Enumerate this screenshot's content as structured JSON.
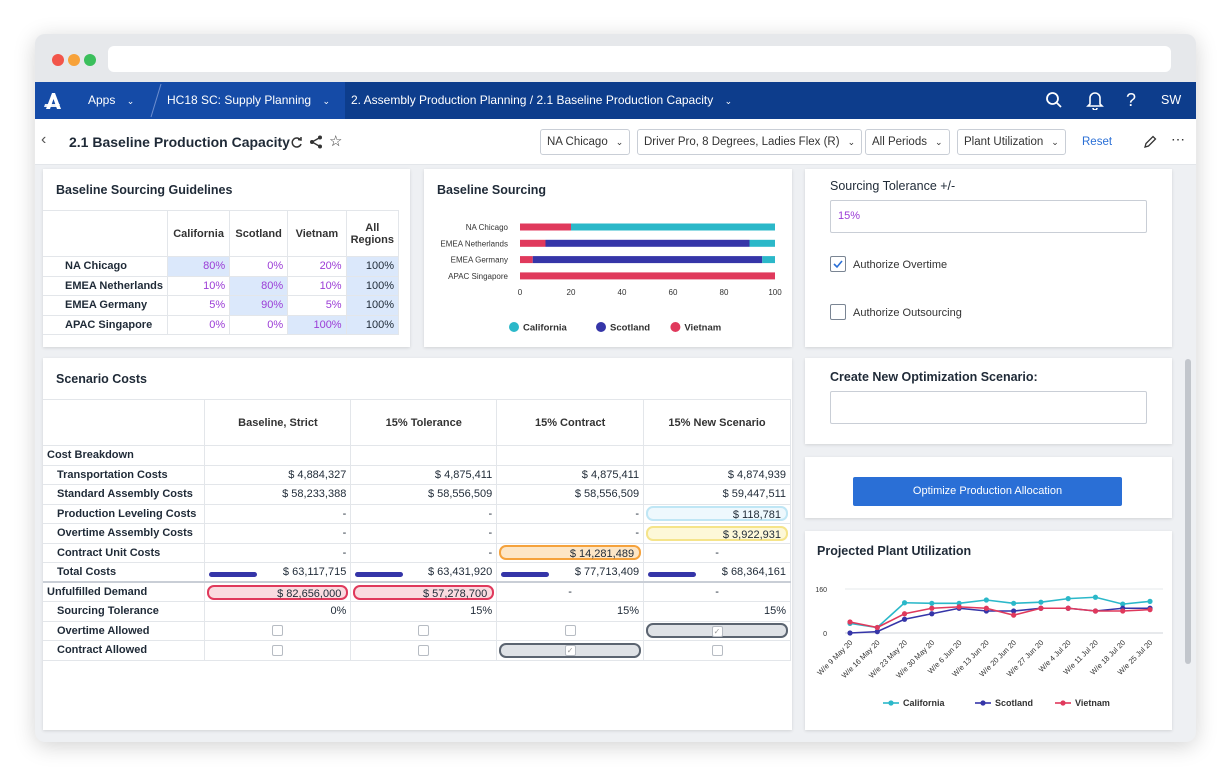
{
  "nav": {
    "apps": "Apps",
    "model": "HC18 SC: Supply Planning",
    "breadcrumb": "2. Assembly Production Planning / 2.1 Baseline Production Capacity",
    "user_initials": "SW"
  },
  "page": {
    "title": "2.1 Baseline Production Capacity",
    "filters": [
      "NA Chicago",
      "Driver Pro, 8 Degrees, Ladies Flex (R)",
      "All Periods",
      "Plant Utilization"
    ],
    "reset_label": "Reset"
  },
  "guidelines": {
    "title": "Baseline Sourcing Guidelines",
    "columns": [
      "California",
      "Scotland",
      "Vietnam",
      "All Regions"
    ],
    "rows": [
      {
        "label": "NA Chicago",
        "values": [
          "80%",
          "0%",
          "20%",
          "100%"
        ]
      },
      {
        "label": "EMEA Netherlands",
        "values": [
          "10%",
          "80%",
          "10%",
          "100%"
        ]
      },
      {
        "label": "EMEA Germany",
        "values": [
          "5%",
          "90%",
          "5%",
          "100%"
        ]
      },
      {
        "label": "APAC Singapore",
        "values": [
          "0%",
          "0%",
          "100%",
          "100%"
        ]
      }
    ]
  },
  "sourcing_chart": {
    "title": "Baseline Sourcing"
  },
  "tolerance": {
    "label": "Sourcing Tolerance +/-",
    "value": "15%",
    "overtime_label": "Authorize Overtime",
    "overtime_checked": true,
    "outsourcing_label": "Authorize Outsourcing",
    "outsourcing_checked": false
  },
  "new_scenario": {
    "label": "Create New Optimization Scenario:",
    "value": ""
  },
  "optimize": {
    "label": "Optimize Production Allocation"
  },
  "scenario_costs": {
    "title": "Scenario Costs",
    "columns": [
      "Baseline, Strict",
      "15% Tolerance",
      "15% Contract",
      "15% New Scenario"
    ],
    "section_label": "Cost Breakdown",
    "rows": [
      {
        "label": "Transportation Costs",
        "values": [
          "$ 4,884,327",
          "$ 4,875,411",
          "$ 4,875,411",
          "$ 4,874,939"
        ]
      },
      {
        "label": "Standard Assembly Costs",
        "values": [
          "$ 58,233,388",
          "$ 58,556,509",
          "$ 58,556,509",
          "$ 59,447,511"
        ]
      },
      {
        "label": "Production Leveling Costs",
        "values": [
          "-",
          "-",
          "-",
          "$ 118,781"
        ]
      },
      {
        "label": "Overtime Assembly Costs",
        "values": [
          "-",
          "-",
          "-",
          "$ 3,922,931"
        ]
      },
      {
        "label": "Contract Unit Costs",
        "values": [
          "-",
          "-",
          "$ 14,281,489",
          "-"
        ]
      },
      {
        "label": "Total Costs",
        "values": [
          "$ 63,117,715",
          "$ 63,431,920",
          "$ 77,713,409",
          "$ 68,364,161"
        ]
      },
      {
        "label": "Unfulfilled Demand",
        "values": [
          "$ 82,656,000",
          "$ 57,278,700",
          "-",
          "-"
        ]
      },
      {
        "label": "Sourcing Tolerance",
        "values": [
          "0%",
          "15%",
          "15%",
          "15%"
        ]
      }
    ],
    "overtime_label": "Overtime Allowed",
    "contract_label": "Contract Allowed"
  },
  "projection": {
    "title": "Projected Plant Utilization"
  },
  "colors": {
    "california": "#2bb8c9",
    "scotland": "#3535a8",
    "vietnam": "#e0395c",
    "nav": "#0d3d8c",
    "button": "#2a6fd6"
  },
  "chart_data": [
    {
      "type": "bar",
      "orientation": "horizontal",
      "stacked": true,
      "title": "Baseline Sourcing",
      "categories": [
        "NA Chicago",
        "EMEA Netherlands",
        "EMEA Germany",
        "APAC Singapore"
      ],
      "series": [
        {
          "name": "Vietnam",
          "values": [
            20,
            10,
            5,
            100
          ]
        },
        {
          "name": "Scotland",
          "values": [
            0,
            80,
            90,
            0
          ]
        },
        {
          "name": "California",
          "values": [
            80,
            10,
            5,
            0
          ]
        }
      ],
      "xlim": [
        0,
        100
      ],
      "xticks": [
        0,
        20,
        40,
        60,
        80,
        100
      ],
      "legend": [
        "California",
        "Scotland",
        "Vietnam"
      ],
      "legend_position": "bottom"
    },
    {
      "type": "line",
      "title": "Projected Plant Utilization",
      "x": [
        "W/e 9 May 20",
        "W/e 16 May 20",
        "W/e 23 May 20",
        "W/e 30 May 20",
        "W/e 6 Jun 20",
        "W/e 13 Jun 20",
        "W/e 20 Jun 20",
        "W/e 27 Jun 20",
        "W/e 4 Jul 20",
        "W/e 11 Jul 20",
        "W/e 18 Jul 20",
        "W/e 25 Jul 20"
      ],
      "series": [
        {
          "name": "California",
          "values": [
            35,
            20,
            110,
            108,
            108,
            120,
            108,
            112,
            125,
            130,
            105,
            115
          ]
        },
        {
          "name": "Scotland",
          "values": [
            0,
            5,
            50,
            70,
            90,
            80,
            80,
            90,
            90,
            80,
            90,
            90
          ]
        },
        {
          "name": "Vietnam",
          "values": [
            40,
            20,
            70,
            90,
            95,
            90,
            65,
            90,
            90,
            80,
            80,
            85
          ]
        }
      ],
      "yticks": [
        0,
        160
      ],
      "ylim": [
        0,
        160
      ],
      "legend_position": "bottom"
    }
  ]
}
